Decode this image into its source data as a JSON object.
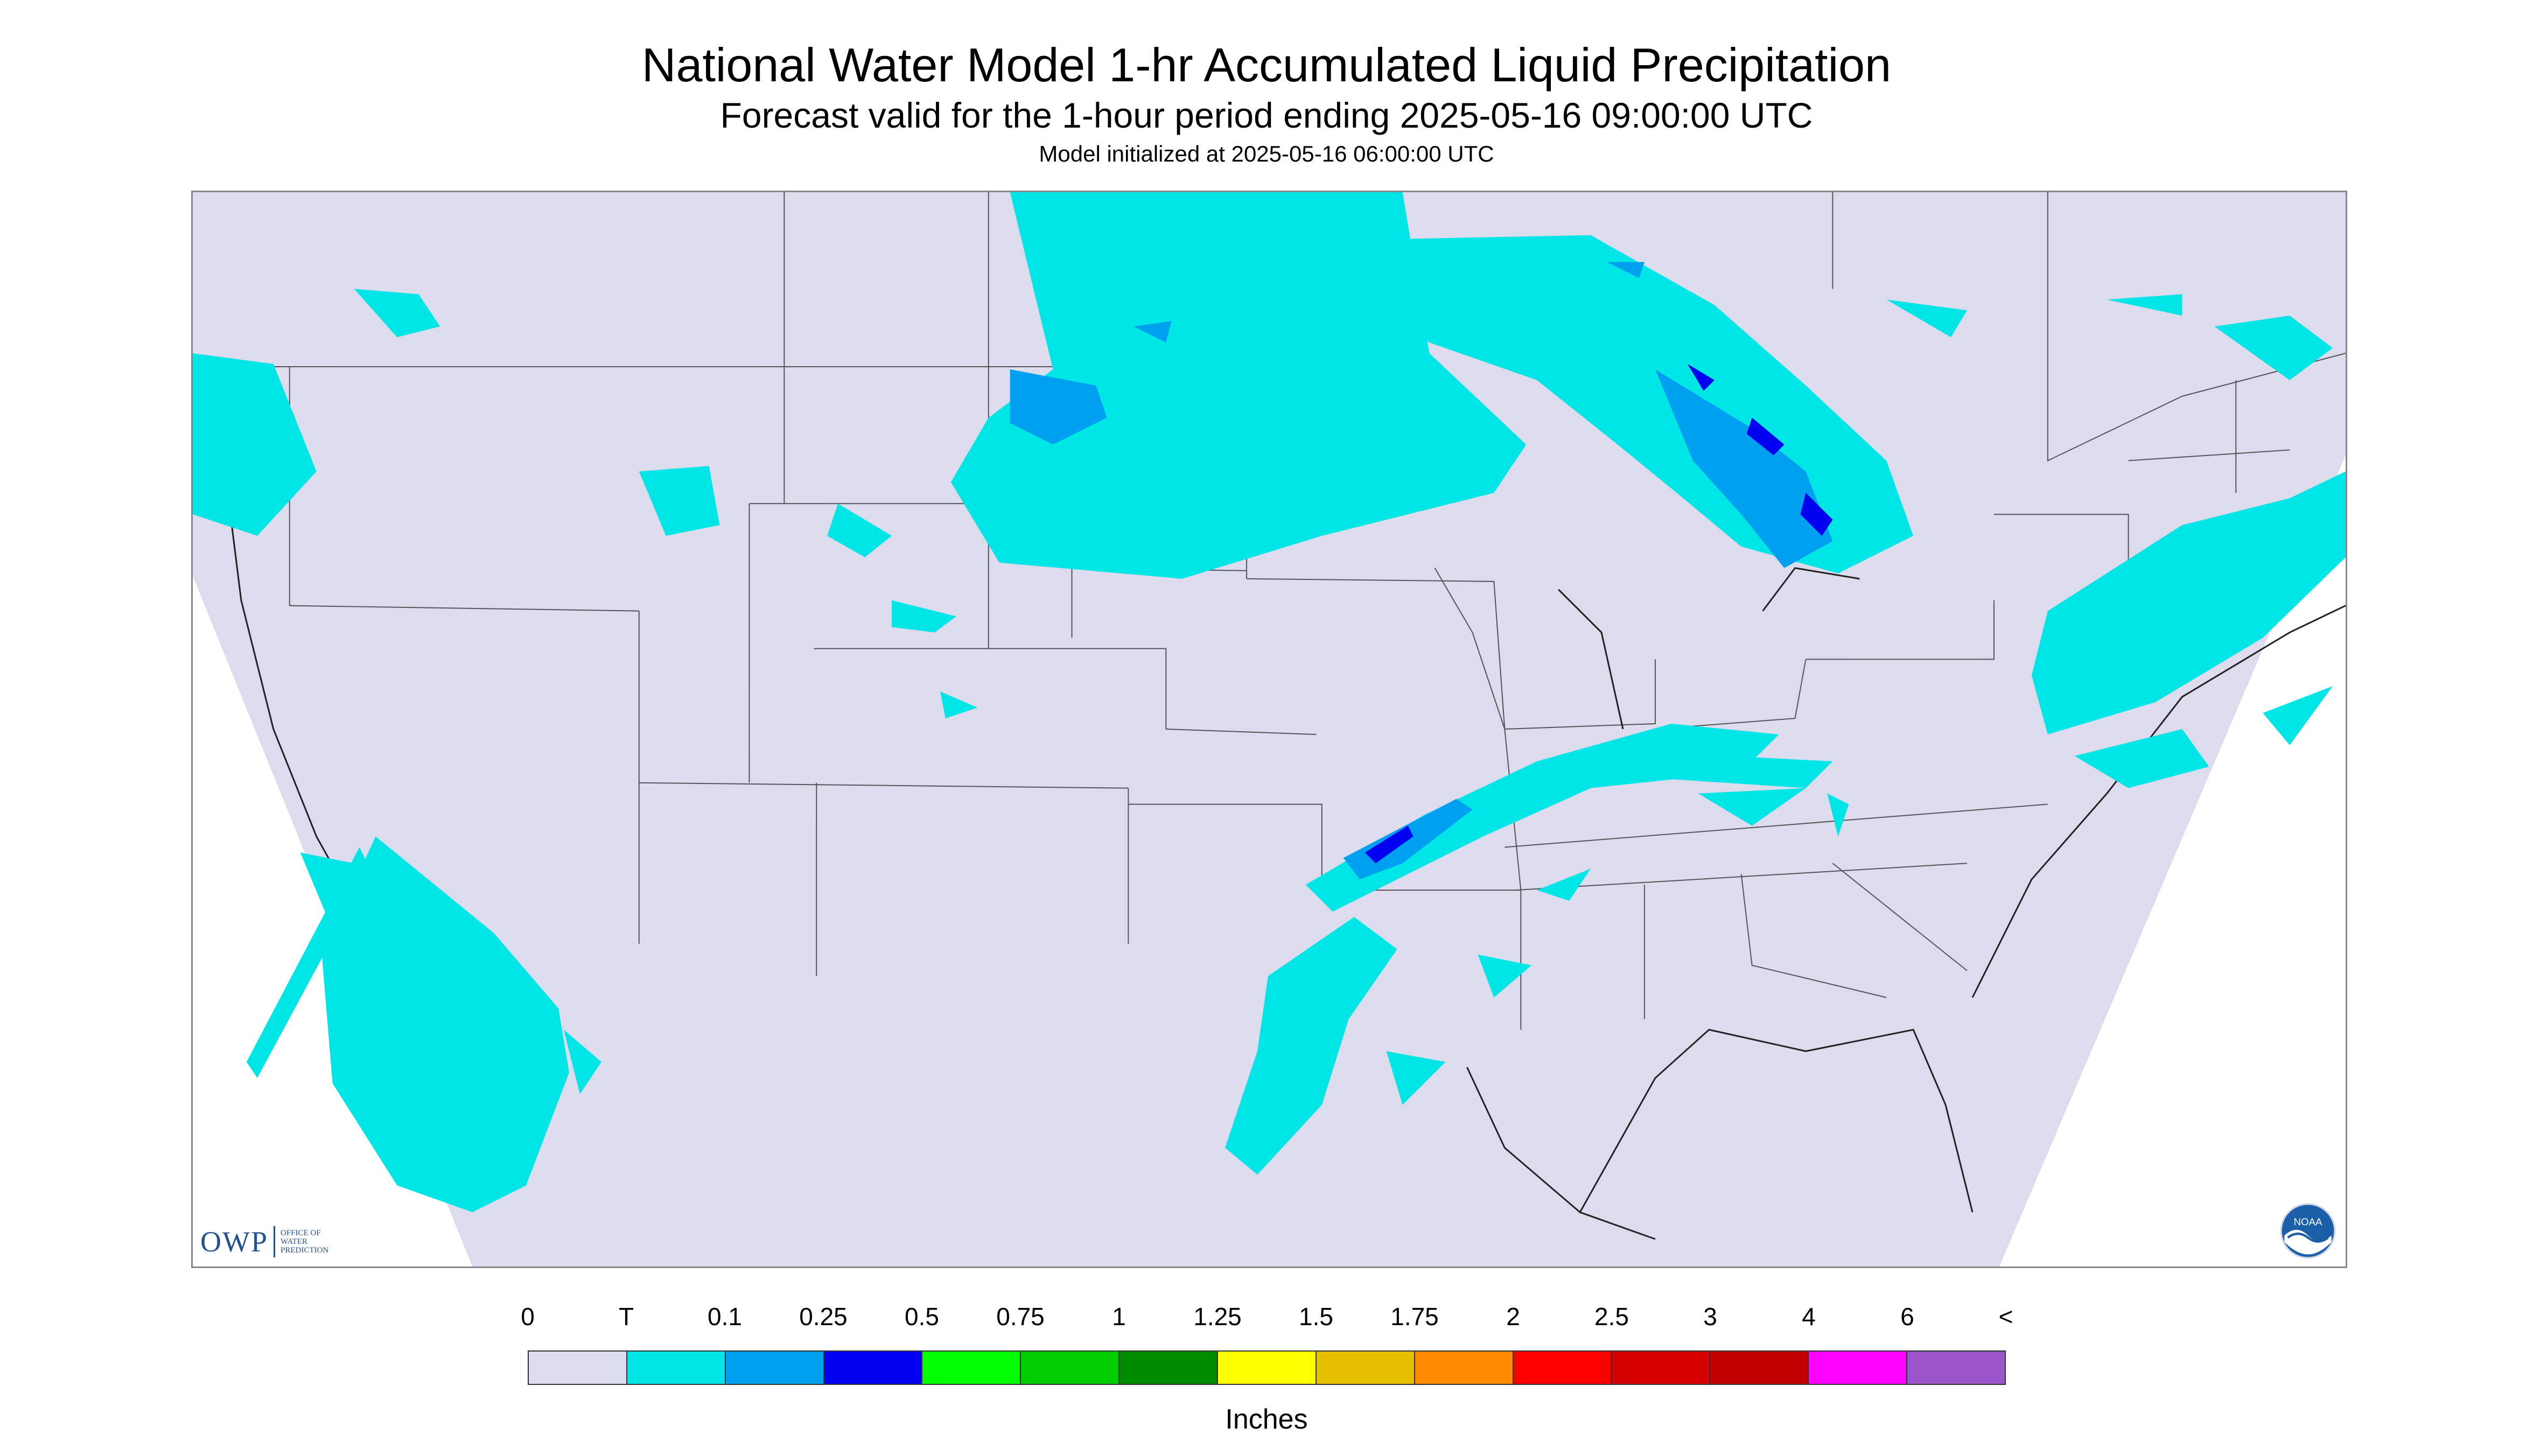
{
  "header": {
    "title": "National Water Model 1-hr Accumulated Liquid Precipitation",
    "subtitle": "Forecast valid for the 1-hour period ending 2025-05-16 09:00:00 UTC",
    "init": "Model initialized at 2025-05-16 06:00:00 UTC"
  },
  "map": {
    "background_color": "#dcdcee",
    "outside_color": "#ffffff",
    "precip_colors": {
      "trace": "#00e5e5",
      "light": "#00a0f0",
      "moderate": "#0000f0"
    },
    "owp_logo": {
      "text": "OWP",
      "subtext": "OFFICE OF WATER PREDICTION"
    },
    "noaa_logo": {
      "text": "NOAA",
      "icon": "noaa-seal-icon"
    }
  },
  "legend": {
    "labels": [
      "0",
      "T",
      "0.1",
      "0.25",
      "0.5",
      "0.75",
      "1",
      "1.25",
      "1.5",
      "1.75",
      "2",
      "2.5",
      "3",
      "4",
      "6",
      "<"
    ],
    "colors": [
      "#dcdcee",
      "#00e5e5",
      "#00a0f0",
      "#0000f0",
      "#00ff00",
      "#00cd00",
      "#008b00",
      "#ffff00",
      "#e5be00",
      "#ff8c00",
      "#ff0000",
      "#d60000",
      "#c10000",
      "#ff00ff",
      "#9955c9"
    ],
    "units": "Inches"
  }
}
